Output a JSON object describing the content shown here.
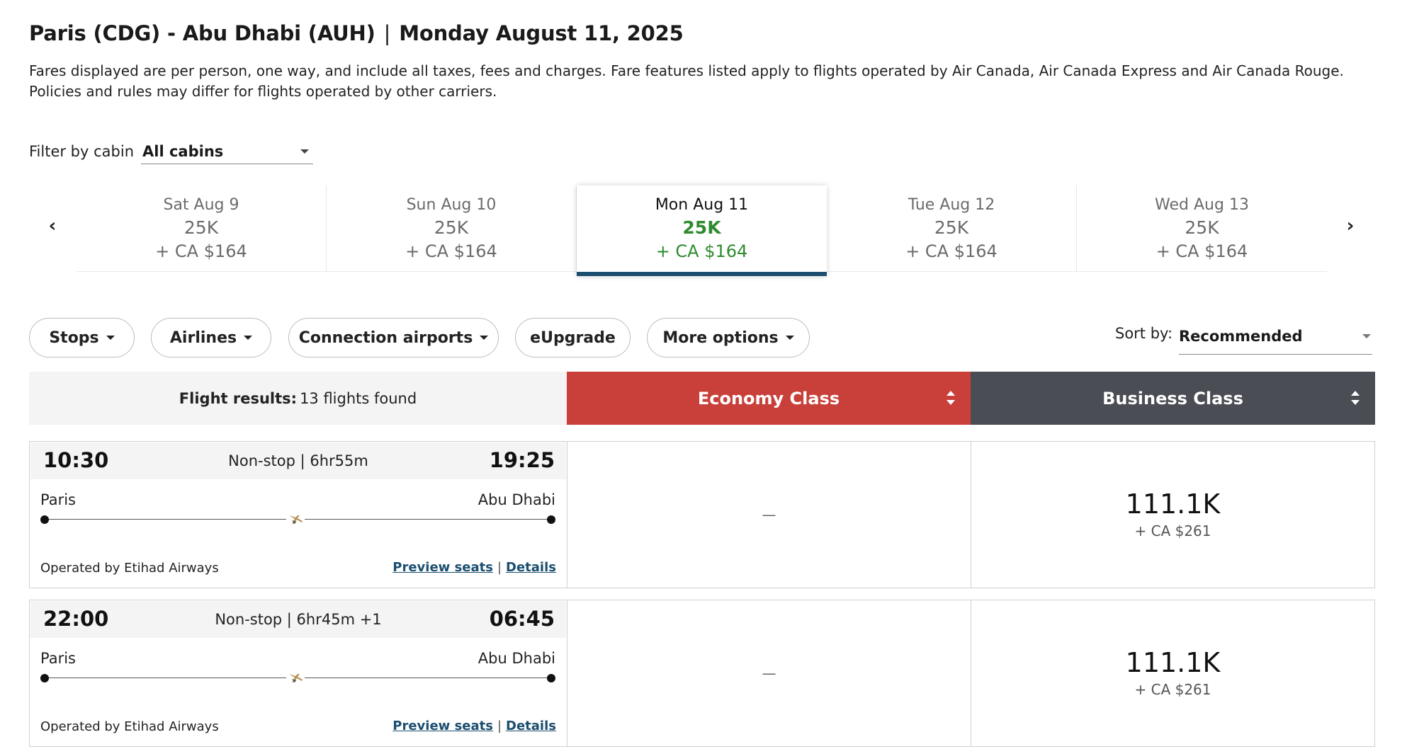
{
  "header": {
    "route": "Paris (CDG) - Abu Dhabi (AUH)",
    "separator": "|",
    "date": "Monday August 11, 2025",
    "disclaimer": "Fares displayed are per person, one way, and include all taxes, fees and charges. Fare features listed apply to flights operated by Air Canada, Air Canada Express and Air Canada Rouge. Policies and rules may differ for flights operated by other carriers."
  },
  "filter": {
    "label": "Filter by cabin",
    "value": "All cabins"
  },
  "carousel": {
    "prev_icon": "chevron-left-icon",
    "next_icon": "chevron-right-icon",
    "prev_glyph": "‹",
    "next_glyph": "›",
    "dates": [
      {
        "day": "Sat Aug 9",
        "points": "25K",
        "cash": "+ CA $164",
        "selected": false
      },
      {
        "day": "Sun Aug 10",
        "points": "25K",
        "cash": "+ CA $164",
        "selected": false
      },
      {
        "day": "Mon Aug 11",
        "points": "25K",
        "cash": "+ CA $164",
        "selected": true
      },
      {
        "day": "Tue Aug 12",
        "points": "25K",
        "cash": "+ CA $164",
        "selected": false
      },
      {
        "day": "Wed Aug 13",
        "points": "25K",
        "cash": "+ CA $164",
        "selected": false
      }
    ]
  },
  "filters": {
    "stops": "Stops",
    "airlines": "Airlines",
    "connection_airports": "Connection airports",
    "eupgrade": "eUpgrade",
    "more_options": "More options"
  },
  "sort": {
    "label": "Sort by:",
    "value": "Recommended"
  },
  "results": {
    "label": "Flight results:",
    "count": "13 flights found",
    "economy_label": "Economy Class",
    "business_label": "Business Class",
    "colors": {
      "economy": "#c9403a",
      "business": "#4a4d54",
      "selected_date_accent": "#1b4e6f",
      "fare_green": "#2e8b2e"
    }
  },
  "flights": [
    {
      "depart": "10:30",
      "arrive": "19:25",
      "summary": "Non-stop | 6hr55m",
      "origin": "Paris",
      "destination": "Abu Dhabi",
      "operator": "Operated by Etihad Airways",
      "preview_seats": "Preview seats",
      "link_sep": "|",
      "details": "Details",
      "economy": "—",
      "business_points": "111.1K",
      "business_cash": "+ CA $261",
      "airline_icon": "etihad-logo-icon"
    },
    {
      "depart": "22:00",
      "arrive": "06:45",
      "summary": "Non-stop | 6hr45m +1",
      "origin": "Paris",
      "destination": "Abu Dhabi",
      "operator": "Operated by Etihad Airways",
      "preview_seats": "Preview seats",
      "link_sep": "|",
      "details": "Details",
      "economy": "—",
      "business_points": "111.1K",
      "business_cash": "+ CA $261",
      "airline_icon": "etihad-logo-icon"
    }
  ]
}
